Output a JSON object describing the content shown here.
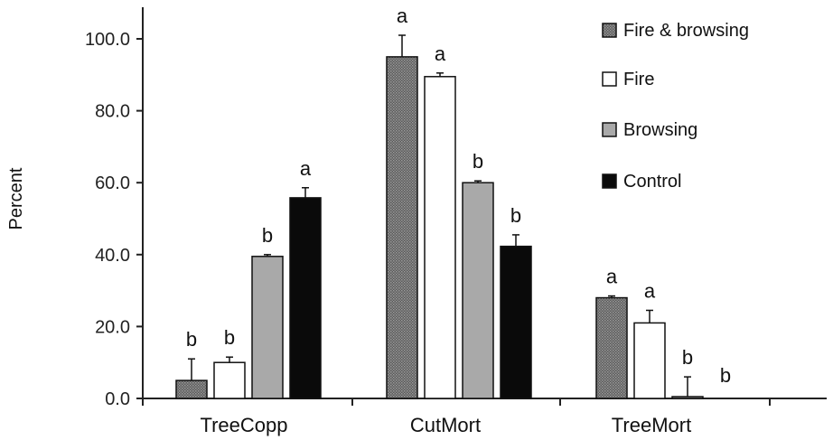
{
  "chart_data": {
    "type": "bar",
    "title": "",
    "xlabel": "",
    "ylabel": "Percent",
    "ylim": [
      0,
      100
    ],
    "yticks": [
      "0.0",
      "20.0",
      "40.0",
      "60.0",
      "80.0",
      "100.0"
    ],
    "categories": [
      "TreeCopp",
      "CutMort",
      "TreeMort"
    ],
    "legend_position": "top-right",
    "series": [
      {
        "name": "Fire & browsing",
        "pattern": "dotted-dark",
        "values": [
          5.0,
          95.0,
          28.0
        ],
        "errors": [
          6.0,
          6.0,
          0.5
        ],
        "letters": [
          "b",
          "a",
          "a"
        ]
      },
      {
        "name": "Fire",
        "pattern": "white",
        "values": [
          10.0,
          89.5,
          21.0
        ],
        "errors": [
          1.5,
          1.0,
          3.5
        ],
        "letters": [
          "b",
          "a",
          "a"
        ]
      },
      {
        "name": "Browsing",
        "pattern": "gray",
        "values": [
          39.5,
          60.0,
          0.5
        ],
        "errors": [
          0.5,
          0.5,
          5.5
        ],
        "letters": [
          "b",
          "b",
          "b"
        ]
      },
      {
        "name": "Control",
        "pattern": "black",
        "values": [
          55.8,
          42.3,
          0.0
        ],
        "errors": [
          2.8,
          3.2,
          0.0
        ],
        "letters": [
          "a",
          "b",
          "b"
        ]
      }
    ],
    "colors": {
      "dotted_dark": "#6a6a6a",
      "white": "#ffffff",
      "gray": "#a9a9a9",
      "black": "#0a0a0a",
      "axis": "#222222"
    }
  }
}
